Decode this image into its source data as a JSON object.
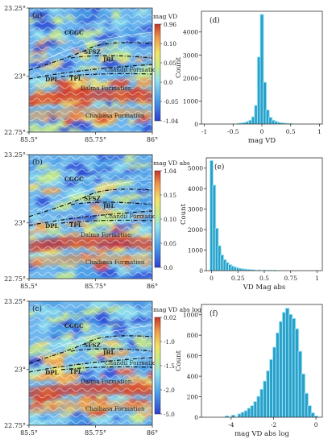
{
  "colors": {
    "bar": "#2a9fc9",
    "bar_halo": "#9fe6f4",
    "dashed": "#111111"
  },
  "map_axes": {
    "lat_ticks": [
      "23.25°",
      "23°",
      "22.75°"
    ],
    "lon_ticks": [
      "85.5°",
      "85.75°",
      "86°"
    ]
  },
  "geo_labels": {
    "cggc": "CGGC",
    "sfsz": "SFSZ",
    "jbl": "JBL",
    "dpl": "DPL",
    "tpl": "TPL",
    "chandil": "Chandil Formation",
    "dalma": "Dalma Formation",
    "chaibasa": "Chaibasa Formation"
  },
  "chart_data": [
    {
      "panel": "(a)",
      "type": "heatmap",
      "colorbar_title": "mag VD",
      "colorbar_ticks": [
        "0.96",
        "0.10",
        "0.05",
        "0.0",
        "-0.05",
        "-1.04"
      ]
    },
    {
      "panel": "(d)",
      "type": "bar",
      "xlabel": "mag VD",
      "ylabel": "Count",
      "xlim": [
        -1.05,
        1.05
      ],
      "ylim": [
        0,
        4900
      ],
      "xticks": [
        -1.0,
        -0.5,
        0.0,
        0.5,
        1.0
      ],
      "yticks": [
        0,
        1000,
        2000,
        3000,
        4000
      ],
      "bin_width": 0.05,
      "bins": [
        {
          "x": -0.4,
          "count": 20
        },
        {
          "x": -0.35,
          "count": 30
        },
        {
          "x": -0.3,
          "count": 50
        },
        {
          "x": -0.25,
          "count": 90
        },
        {
          "x": -0.2,
          "count": 150
        },
        {
          "x": -0.15,
          "count": 300
        },
        {
          "x": -0.1,
          "count": 800
        },
        {
          "x": -0.05,
          "count": 2900
        },
        {
          "x": 0.0,
          "count": 4750
        },
        {
          "x": 0.05,
          "count": 1800
        },
        {
          "x": 0.1,
          "count": 600
        },
        {
          "x": 0.15,
          "count": 280
        },
        {
          "x": 0.2,
          "count": 150
        },
        {
          "x": 0.25,
          "count": 100
        },
        {
          "x": 0.3,
          "count": 60
        },
        {
          "x": 0.35,
          "count": 40
        },
        {
          "x": 0.4,
          "count": 25
        },
        {
          "x": 0.45,
          "count": 15
        },
        {
          "x": 0.5,
          "count": 10
        }
      ]
    },
    {
      "panel": "(b)",
      "type": "heatmap",
      "colorbar_title": "mag VD abs",
      "colorbar_ticks": [
        "1.04",
        "0.15",
        "0.10",
        "0.05",
        "0.0"
      ]
    },
    {
      "panel": "(e)",
      "type": "bar",
      "xlabel": "VD Mag abs",
      "ylabel": "Count",
      "xlim": [
        -0.05,
        1.05
      ],
      "ylim": [
        0,
        5500
      ],
      "xticks": [
        0.0,
        0.25,
        0.5,
        0.75,
        1.0
      ],
      "yticks": [
        0,
        1000,
        2000,
        3000,
        4000,
        5000
      ],
      "bin_width": 0.025,
      "bins": [
        {
          "x": 0.0,
          "count": 5350
        },
        {
          "x": 0.025,
          "count": 4150
        },
        {
          "x": 0.05,
          "count": 2050
        },
        {
          "x": 0.075,
          "count": 1200
        },
        {
          "x": 0.1,
          "count": 750
        },
        {
          "x": 0.125,
          "count": 520
        },
        {
          "x": 0.15,
          "count": 380
        },
        {
          "x": 0.175,
          "count": 280
        },
        {
          "x": 0.2,
          "count": 210
        },
        {
          "x": 0.225,
          "count": 160
        },
        {
          "x": 0.25,
          "count": 120
        },
        {
          "x": 0.275,
          "count": 90
        },
        {
          "x": 0.3,
          "count": 70
        },
        {
          "x": 0.325,
          "count": 55
        },
        {
          "x": 0.35,
          "count": 45
        },
        {
          "x": 0.375,
          "count": 35
        },
        {
          "x": 0.4,
          "count": 28
        },
        {
          "x": 0.45,
          "count": 20
        },
        {
          "x": 0.5,
          "count": 15
        },
        {
          "x": 0.55,
          "count": 10
        },
        {
          "x": 0.6,
          "count": 8
        }
      ]
    },
    {
      "panel": "(c)",
      "type": "heatmap",
      "colorbar_title": "mag VD abs log",
      "colorbar_ticks": [
        "0.02",
        "-1.0",
        "-1.5",
        "-2.0",
        "-5.0"
      ]
    },
    {
      "panel": "(f)",
      "type": "bar",
      "xlabel": "mag VD abs log",
      "ylabel": "Count",
      "xlim": [
        -5.4,
        0.3
      ],
      "ylim": [
        0,
        1100
      ],
      "xticks": [
        -4,
        -2,
        0
      ],
      "yticks": [
        0,
        200,
        400,
        600,
        800,
        1000
      ],
      "bin_width": 0.15,
      "bins": [
        {
          "x": -4.2,
          "count": 10
        },
        {
          "x": -3.9,
          "count": 18
        },
        {
          "x": -3.6,
          "count": 30
        },
        {
          "x": -3.45,
          "count": 45
        },
        {
          "x": -3.3,
          "count": 60
        },
        {
          "x": -3.15,
          "count": 85
        },
        {
          "x": -3.0,
          "count": 110
        },
        {
          "x": -2.85,
          "count": 150
        },
        {
          "x": -2.7,
          "count": 200
        },
        {
          "x": -2.55,
          "count": 270
        },
        {
          "x": -2.4,
          "count": 350
        },
        {
          "x": -2.25,
          "count": 450
        },
        {
          "x": -2.1,
          "count": 560
        },
        {
          "x": -1.95,
          "count": 680
        },
        {
          "x": -1.8,
          "count": 820
        },
        {
          "x": -1.65,
          "count": 930
        },
        {
          "x": -1.5,
          "count": 1020
        },
        {
          "x": -1.35,
          "count": 1060
        },
        {
          "x": -1.2,
          "count": 1000
        },
        {
          "x": -1.05,
          "count": 960
        },
        {
          "x": -0.9,
          "count": 860
        },
        {
          "x": -0.75,
          "count": 640
        },
        {
          "x": -0.6,
          "count": 420
        },
        {
          "x": -0.45,
          "count": 230
        },
        {
          "x": -0.3,
          "count": 110
        },
        {
          "x": -0.15,
          "count": 40
        },
        {
          "x": 0.0,
          "count": 10
        }
      ]
    }
  ]
}
